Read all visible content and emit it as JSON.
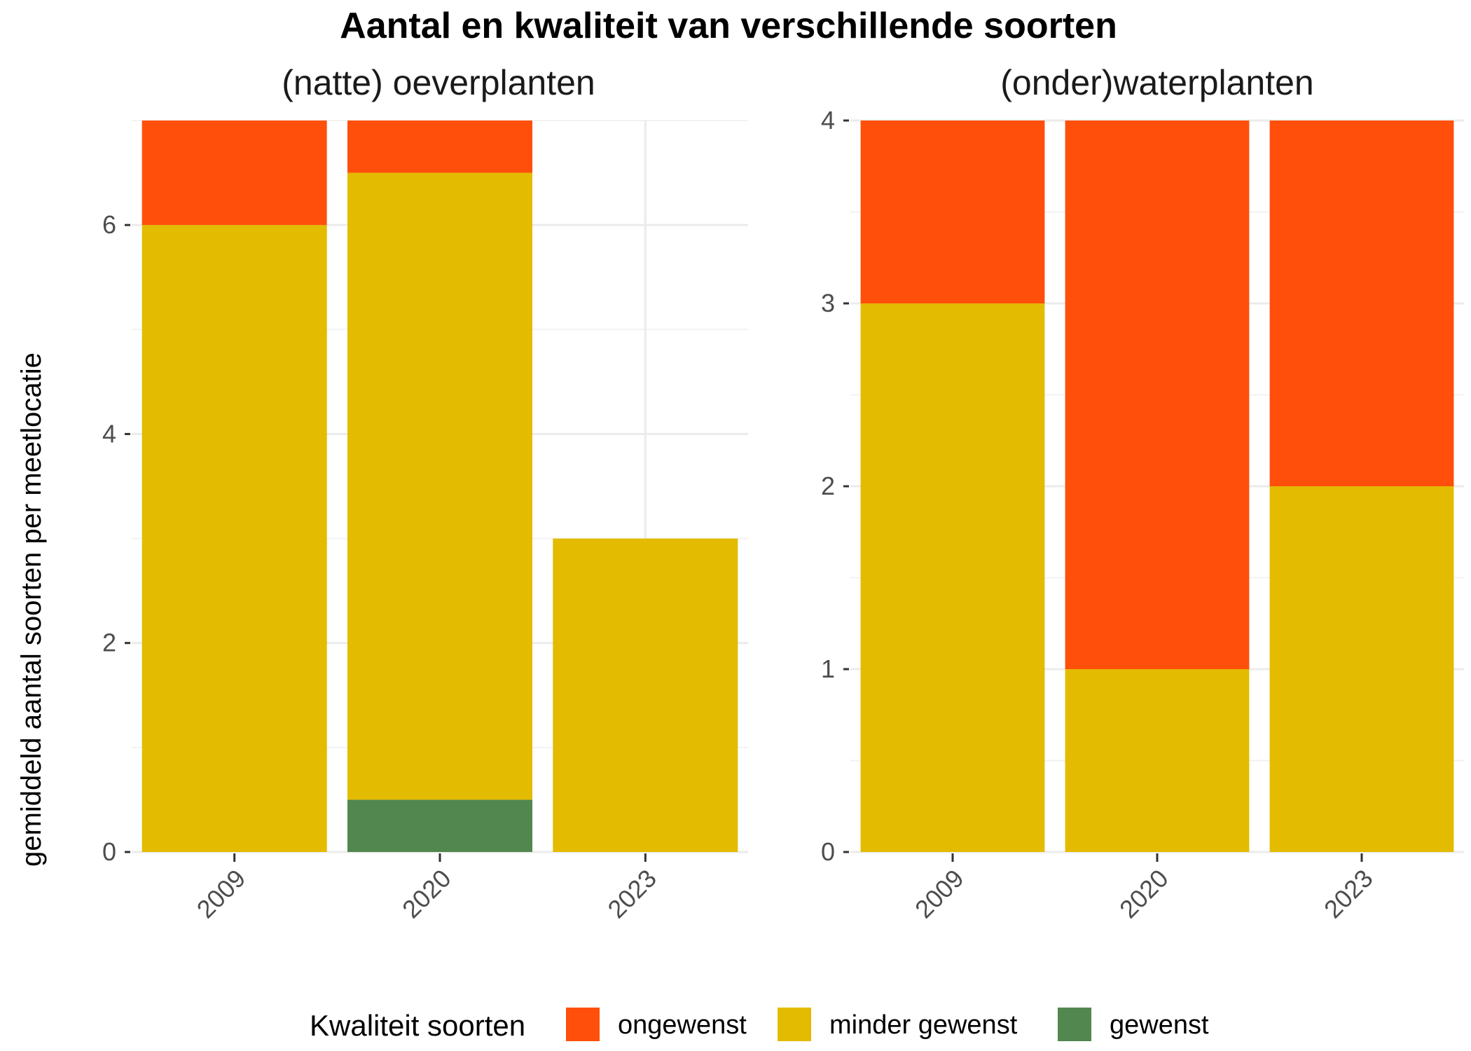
{
  "chart_data": {
    "type": "bar",
    "stacked": true,
    "title": "Aantal en kwaliteit van verschillende soorten",
    "ylabel": "gemiddeld aantal soorten per meetlocatie",
    "xlabel": "",
    "legend": {
      "title": "Kwaliteit soorten",
      "position": "bottom",
      "entries": [
        {
          "name": "ongewenst",
          "color": "#FF4F0A"
        },
        {
          "name": "minder gewenst",
          "color": "#E3BB00"
        },
        {
          "name": "gewenst",
          "color": "#52874F"
        }
      ]
    },
    "grid": true,
    "panels": [
      {
        "title": "(natte) oeverplanten",
        "categories": [
          "2009",
          "2020",
          "2023"
        ],
        "ylim": [
          0,
          7
        ],
        "yticks": [
          "0",
          "2",
          "4",
          "6"
        ],
        "ytick_values": [
          0,
          2,
          4,
          6
        ],
        "series": [
          {
            "name": "gewenst",
            "values": [
              0,
              0.5,
              0
            ]
          },
          {
            "name": "minder gewenst",
            "values": [
              6,
              6,
              3
            ]
          },
          {
            "name": "ongewenst",
            "values": [
              1,
              0.5,
              0
            ]
          }
        ]
      },
      {
        "title": "(onder)waterplanten",
        "categories": [
          "2009",
          "2020",
          "2023"
        ],
        "ylim": [
          0,
          4
        ],
        "yticks": [
          "0",
          "1",
          "2",
          "3",
          "4"
        ],
        "ytick_values": [
          0,
          1,
          2,
          3,
          4
        ],
        "series": [
          {
            "name": "gewenst",
            "values": [
              0,
              0,
              0
            ]
          },
          {
            "name": "minder gewenst",
            "values": [
              3,
              1,
              2
            ]
          },
          {
            "name": "ongewenst",
            "values": [
              1,
              3,
              2
            ]
          }
        ]
      }
    ]
  }
}
